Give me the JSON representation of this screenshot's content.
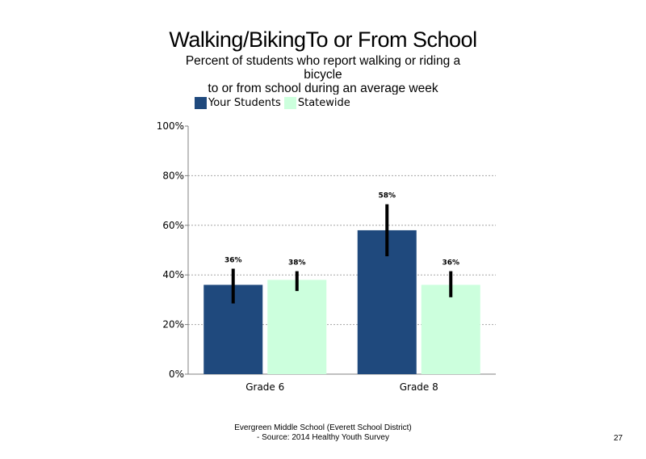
{
  "chart_data": {
    "type": "bar",
    "title": "Walking/BikingTo or From School",
    "subtitle_lines": [
      "Percent of students who report walking or riding a",
      "bicycle",
      "to or from school during an average week"
    ],
    "categories": [
      "Grade 6",
      "Grade 8"
    ],
    "series": [
      {
        "name": "Your Students",
        "color": "#1f497d",
        "values": [
          36,
          58
        ],
        "labels": [
          "36%",
          "58%"
        ],
        "error_low": [
          28.5,
          47.5
        ],
        "error_high": [
          42.5,
          68.5
        ]
      },
      {
        "name": "Statewide",
        "color": "#ccffdd",
        "values": [
          38,
          36
        ],
        "labels": [
          "38%",
          "36%"
        ],
        "error_low": [
          33.5,
          31
        ],
        "error_high": [
          41.5,
          41.5
        ]
      }
    ],
    "ylim": [
      0,
      100
    ],
    "yticks": [
      0,
      20,
      40,
      60,
      80,
      100
    ],
    "ytick_labels": [
      "0%",
      "20%",
      "40%",
      "60%",
      "80%",
      "100%"
    ],
    "grid": true,
    "legend_position": "top-left"
  },
  "footer": {
    "line1": "Evergreen Middle School (Everett School District)",
    "line2": "- Source: 2014 Healthy  Youth Survey"
  },
  "page_number": "27"
}
